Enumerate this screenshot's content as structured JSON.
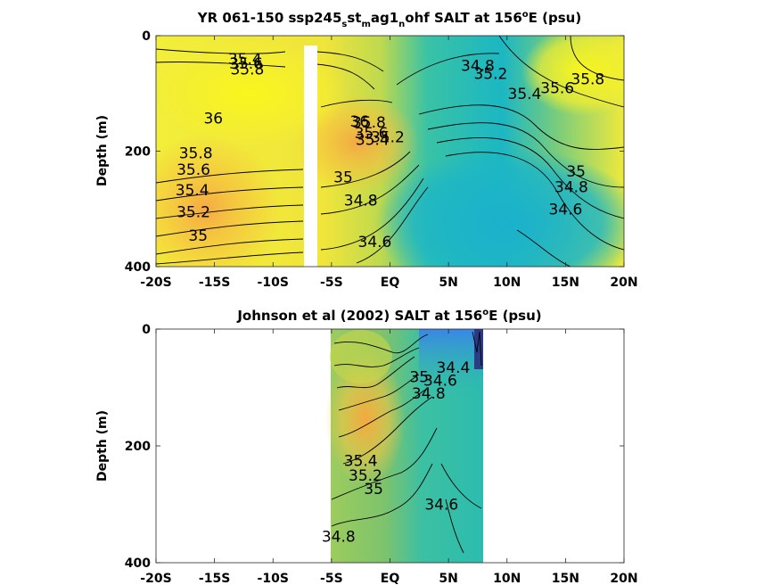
{
  "chart_data": [
    {
      "type": "contour",
      "title_parts": {
        "a": "YR 061-150 ssp245",
        "b": "s",
        "c": "st",
        "d": "m",
        "e": "ag1",
        "f": "n",
        "g": "ohf SALT at 156",
        "h": "o",
        "i": "E (psu)"
      },
      "ylabel": "Depth (m)",
      "x_ticks": [
        "-20S",
        "-15S",
        "-10S",
        "-5S",
        "EQ",
        "5N",
        "10N",
        "15N",
        "20N"
      ],
      "x_tick_values": [
        -20,
        -15,
        -10,
        -5,
        0,
        5,
        10,
        15,
        20
      ],
      "y_ticks": [
        "0",
        "200",
        "400"
      ],
      "y_tick_values": [
        0,
        200,
        400
      ],
      "xlim": [
        -20,
        20
      ],
      "ylim": [
        0,
        400
      ],
      "y_reversed": true,
      "masked_band": {
        "x": [
          -7.7,
          -6.6
        ],
        "depth": [
          15,
          400
        ]
      },
      "contour_labels": [
        {
          "text": "35.4",
          "x": -12.4,
          "depth": 40
        },
        {
          "text": "35.6",
          "x": -12.3,
          "depth": 48
        },
        {
          "text": "35.8",
          "x": -12.2,
          "depth": 58
        },
        {
          "text": "36",
          "x": -15.1,
          "depth": 143
        },
        {
          "text": "35.8",
          "x": -16.6,
          "depth": 203
        },
        {
          "text": "35.6",
          "x": -16.8,
          "depth": 232
        },
        {
          "text": "35.4",
          "x": -16.9,
          "depth": 267
        },
        {
          "text": "35.2",
          "x": -16.8,
          "depth": 305
        },
        {
          "text": "35",
          "x": -16.4,
          "depth": 346
        },
        {
          "text": "36",
          "x": -2.6,
          "depth": 148
        },
        {
          "text": "35.8",
          "x": -1.8,
          "depth": 150
        },
        {
          "text": "35.6",
          "x": -1.6,
          "depth": 168
        },
        {
          "text": "35.4",
          "x": -1.5,
          "depth": 180
        },
        {
          "text": "35.2",
          "x": -0.2,
          "depth": 175
        },
        {
          "text": "35",
          "x": -4.0,
          "depth": 245
        },
        {
          "text": "34.8",
          "x": -2.5,
          "depth": 285
        },
        {
          "text": "34.6",
          "x": -1.3,
          "depth": 357
        },
        {
          "text": "34.8",
          "x": 7.5,
          "depth": 52
        },
        {
          "text": "35.2",
          "x": 8.6,
          "depth": 66
        },
        {
          "text": "35.4",
          "x": 11.5,
          "depth": 100
        },
        {
          "text": "35.6",
          "x": 14.3,
          "depth": 90
        },
        {
          "text": "35.8",
          "x": 16.9,
          "depth": 75
        },
        {
          "text": "35",
          "x": 15.9,
          "depth": 235
        },
        {
          "text": "34.8",
          "x": 15.5,
          "depth": 262
        },
        {
          "text": "34.6",
          "x": 15.0,
          "depth": 300
        }
      ]
    },
    {
      "type": "contour",
      "title_parts": {
        "a": "Johnson et al (2002) SALT at 156",
        "h": "o",
        "i": "E (psu)"
      },
      "ylabel": "Depth (m)",
      "x_ticks": [
        "-20S",
        "-15S",
        "-10S",
        "-5S",
        "EQ",
        "5N",
        "10N",
        "15N",
        "20N"
      ],
      "x_tick_values": [
        -20,
        -15,
        -10,
        -5,
        0,
        5,
        10,
        15,
        20
      ],
      "y_ticks": [
        "0",
        "200",
        "400"
      ],
      "y_tick_values": [
        0,
        200,
        400
      ],
      "xlim": [
        -20,
        20
      ],
      "ylim": [
        0,
        400
      ],
      "y_reversed": true,
      "data_extent": {
        "x": [
          -5,
          8
        ]
      },
      "contour_labels": [
        {
          "text": "34.4",
          "x": 5.4,
          "depth": 66
        },
        {
          "text": "34.6",
          "x": 4.3,
          "depth": 88
        },
        {
          "text": "34.8",
          "x": 3.3,
          "depth": 110
        },
        {
          "text": "35",
          "x": 2.5,
          "depth": 82
        },
        {
          "text": "35.4",
          "x": -2.5,
          "depth": 225
        },
        {
          "text": "35.2",
          "x": -2.1,
          "depth": 250
        },
        {
          "text": "35",
          "x": -1.4,
          "depth": 273
        },
        {
          "text": "34.8",
          "x": -4.4,
          "depth": 355
        },
        {
          "text": "34.6",
          "x": 4.4,
          "depth": 300
        }
      ]
    }
  ]
}
